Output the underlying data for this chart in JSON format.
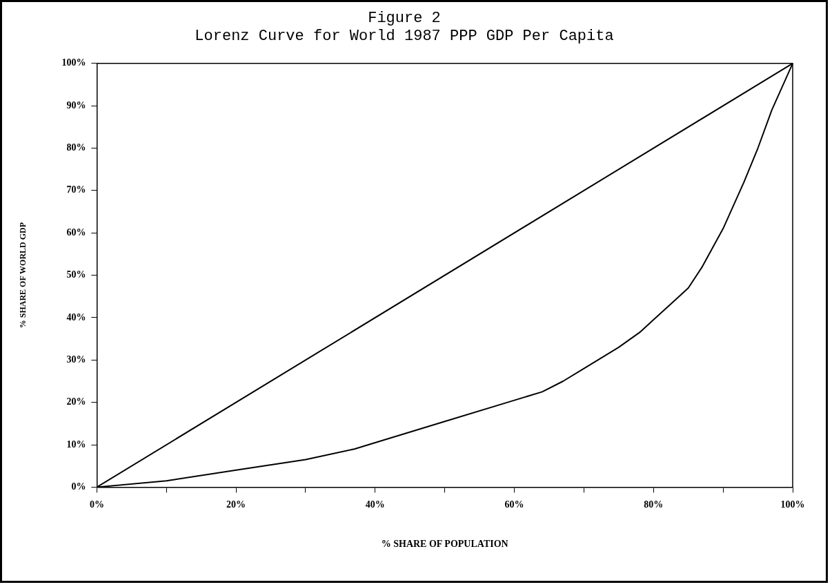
{
  "chart_data": {
    "type": "line",
    "title": "Figure 2",
    "subtitle": "Lorenz Curve for World 1987 PPP GDP Per Capita",
    "xlabel": "% SHARE OF POPULATION",
    "ylabel": "% SHARE OF WORLD GDP",
    "series": [
      {
        "color": "#000000",
        "x": [
          0,
          100
        ],
        "values": [
          0,
          100
        ]
      },
      {
        "color": "#000000",
        "x": [
          0,
          10,
          20,
          30,
          37,
          40,
          50,
          60,
          64,
          67,
          70,
          75,
          78,
          80,
          83,
          85,
          87,
          90,
          93,
          95,
          97,
          100
        ],
        "values": [
          0,
          1.5,
          4,
          6.5,
          9,
          10.5,
          15.5,
          20.5,
          22.5,
          25,
          28,
          33,
          36.5,
          39.5,
          44,
          47,
          52,
          61,
          72,
          80,
          89,
          100
        ]
      }
    ],
    "xlim": [
      0,
      100
    ],
    "ylim": [
      0,
      100
    ],
    "xticks": [
      {
        "value": 0,
        "label": "0%"
      },
      {
        "value": 10,
        "label": null
      },
      {
        "value": 20,
        "label": "20%"
      },
      {
        "value": 30,
        "label": null
      },
      {
        "value": 40,
        "label": "40%"
      },
      {
        "value": 50,
        "label": null
      },
      {
        "value": 60,
        "label": "60%"
      },
      {
        "value": 70,
        "label": null
      },
      {
        "value": 80,
        "label": "80%"
      },
      {
        "value": 90,
        "label": null
      },
      {
        "value": 100,
        "label": "100%"
      }
    ],
    "yticks": [
      {
        "value": 0,
        "label": "0%"
      },
      {
        "value": 10,
        "label": "10%"
      },
      {
        "value": 20,
        "label": "20%"
      },
      {
        "value": 30,
        "label": "30%"
      },
      {
        "value": 40,
        "label": "40%"
      },
      {
        "value": 50,
        "label": "50%"
      },
      {
        "value": 60,
        "label": "60%"
      },
      {
        "value": 70,
        "label": "70%"
      },
      {
        "value": 80,
        "label": "80%"
      },
      {
        "value": 90,
        "label": "90%"
      },
      {
        "value": 100,
        "label": "100%"
      }
    ],
    "grid": false,
    "legend": false,
    "marker": "none",
    "line_style": "solid"
  }
}
